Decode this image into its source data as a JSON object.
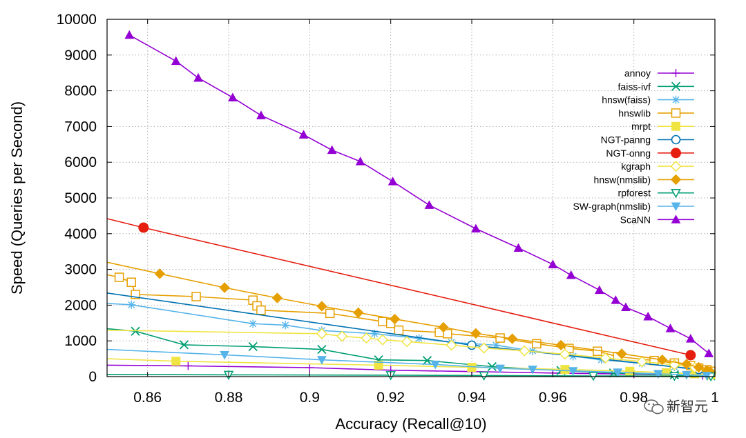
{
  "chart_data": {
    "type": "line",
    "xlabel": "Accuracy (Recall@10)",
    "ylabel": "Speed (Queries per Second)",
    "xlim": [
      0.85,
      1.0
    ],
    "ylim": [
      0,
      10000
    ],
    "xticks": [
      "0.86",
      "0.88",
      "0.9",
      "0.92",
      "0.94",
      "0.96",
      "0.98",
      "1"
    ],
    "yticks": [
      "0",
      "1000",
      "2000",
      "3000",
      "4000",
      "5000",
      "6000",
      "7000",
      "8000",
      "9000",
      "10000"
    ],
    "grid": true,
    "legend_position": "top-right",
    "series": [
      {
        "name": "annoy",
        "color": "#9400d3",
        "marker": "plus",
        "points": [
          [
            0.85,
            320
          ],
          [
            0.87,
            300
          ],
          [
            0.9,
            250
          ],
          [
            0.92,
            180
          ],
          [
            0.94,
            140
          ],
          [
            0.96,
            100
          ],
          [
            0.98,
            70
          ],
          [
            0.997,
            30
          ],
          [
            0.999,
            10
          ]
        ]
      },
      {
        "name": "faiss-ivf",
        "color": "#009e73",
        "marker": "x",
        "points": [
          [
            0.85,
            1340
          ],
          [
            0.857,
            1270
          ],
          [
            0.869,
            890
          ],
          [
            0.886,
            840
          ],
          [
            0.903,
            760
          ],
          [
            0.917,
            470
          ],
          [
            0.929,
            450
          ],
          [
            0.945,
            280
          ],
          [
            0.962,
            170
          ],
          [
            0.975,
            100
          ],
          [
            0.99,
            50
          ],
          [
            0.999,
            20
          ]
        ]
      },
      {
        "name": "hnsw(faiss)",
        "color": "#56b4e9",
        "marker": "star",
        "points": [
          [
            0.85,
            2050
          ],
          [
            0.856,
            2010
          ],
          [
            0.886,
            1480
          ],
          [
            0.894,
            1440
          ],
          [
            0.903,
            1290
          ],
          [
            0.916,
            1200
          ],
          [
            0.927,
            1070
          ],
          [
            0.935,
            960
          ],
          [
            0.946,
            880
          ],
          [
            0.955,
            720
          ],
          [
            0.965,
            570
          ],
          [
            0.972,
            470
          ],
          [
            0.982,
            370
          ],
          [
            0.99,
            270
          ],
          [
            0.996,
            180
          ],
          [
            0.999,
            60
          ]
        ]
      },
      {
        "name": "hnswlib",
        "color": "#e69f00",
        "marker": "square-open",
        "points": [
          [
            0.85,
            2850
          ],
          [
            0.853,
            2780
          ],
          [
            0.856,
            2640
          ],
          [
            0.857,
            2300
          ],
          [
            0.872,
            2240
          ],
          [
            0.886,
            2140
          ],
          [
            0.887,
            1980
          ],
          [
            0.888,
            1860
          ],
          [
            0.905,
            1770
          ],
          [
            0.918,
            1540
          ],
          [
            0.92,
            1490
          ],
          [
            0.922,
            1300
          ],
          [
            0.932,
            1240
          ],
          [
            0.934,
            1200
          ],
          [
            0.947,
            1080
          ],
          [
            0.956,
            920
          ],
          [
            0.964,
            790
          ],
          [
            0.971,
            710
          ],
          [
            0.976,
            560
          ],
          [
            0.985,
            450
          ],
          [
            0.99,
            380
          ],
          [
            0.994,
            310
          ],
          [
            0.996,
            240
          ],
          [
            0.998,
            190
          ],
          [
            0.999,
            150
          ]
        ]
      },
      {
        "name": "mrpt",
        "color": "#f0e442",
        "marker": "square-filled",
        "points": [
          [
            0.85,
            500
          ],
          [
            0.867,
            430
          ],
          [
            0.917,
            320
          ],
          [
            0.94,
            260
          ],
          [
            0.963,
            200
          ],
          [
            0.979,
            150
          ],
          [
            0.988,
            110
          ],
          [
            0.995,
            80
          ],
          [
            0.999,
            50
          ]
        ]
      },
      {
        "name": "NGT-panng",
        "color": "#0072b2",
        "marker": "circle-open",
        "points": [
          [
            0.85,
            2340
          ],
          [
            0.94,
            880
          ],
          [
            0.996,
            200
          ]
        ]
      },
      {
        "name": "NGT-onng",
        "color": "#e51e10",
        "marker": "circle-filled",
        "points": [
          [
            0.85,
            4420
          ],
          [
            0.859,
            4170
          ],
          [
            0.994,
            600
          ]
        ]
      },
      {
        "name": "kgraph",
        "color": "#f0e442",
        "marker": "diamond-open",
        "points": [
          [
            0.85,
            1300
          ],
          [
            0.903,
            1200
          ],
          [
            0.908,
            1130
          ],
          [
            0.914,
            1080
          ],
          [
            0.918,
            1030
          ],
          [
            0.924,
            980
          ],
          [
            0.935,
            880
          ],
          [
            0.943,
            800
          ],
          [
            0.953,
            720
          ],
          [
            0.963,
            630
          ],
          [
            0.973,
            520
          ],
          [
            0.982,
            420
          ],
          [
            0.99,
            330
          ],
          [
            0.995,
            250
          ],
          [
            0.998,
            170
          ],
          [
            0.999,
            100
          ]
        ]
      },
      {
        "name": "hnsw(nmslib)",
        "color": "#e69f00",
        "marker": "diamond-filled",
        "points": [
          [
            0.85,
            3200
          ],
          [
            0.863,
            2880
          ],
          [
            0.879,
            2490
          ],
          [
            0.892,
            2200
          ],
          [
            0.903,
            1970
          ],
          [
            0.912,
            1790
          ],
          [
            0.921,
            1610
          ],
          [
            0.933,
            1380
          ],
          [
            0.941,
            1210
          ],
          [
            0.95,
            1060
          ],
          [
            0.962,
            880
          ],
          [
            0.977,
            640
          ],
          [
            0.987,
            470
          ],
          [
            0.993,
            350
          ],
          [
            0.996,
            260
          ],
          [
            0.998,
            180
          ],
          [
            0.999,
            120
          ]
        ]
      },
      {
        "name": "rpforest",
        "color": "#009e73",
        "marker": "triangle-down-open",
        "points": [
          [
            0.85,
            60
          ],
          [
            0.88,
            50
          ],
          [
            0.92,
            40
          ],
          [
            0.943,
            30
          ],
          [
            0.97,
            20
          ],
          [
            0.99,
            15
          ],
          [
            0.999,
            5
          ]
        ]
      },
      {
        "name": "SW-graph(nmslib)",
        "color": "#56b4e9",
        "marker": "triangle-down-filled",
        "points": [
          [
            0.85,
            760
          ],
          [
            0.879,
            610
          ],
          [
            0.903,
            470
          ],
          [
            0.931,
            340
          ],
          [
            0.947,
            230
          ],
          [
            0.955,
            200
          ],
          [
            0.965,
            160
          ],
          [
            0.976,
            120
          ],
          [
            0.986,
            80
          ],
          [
            0.993,
            50
          ],
          [
            0.998,
            30
          ]
        ]
      },
      {
        "name": "ScaNN",
        "color": "#9400d3",
        "marker": "triangle-up-filled",
        "points": [
          [
            0.8555,
            9560
          ],
          [
            0.867,
            8830
          ],
          [
            0.8725,
            8360
          ],
          [
            0.881,
            7810
          ],
          [
            0.888,
            7310
          ],
          [
            0.8985,
            6770
          ],
          [
            0.9055,
            6340
          ],
          [
            0.9125,
            6020
          ],
          [
            0.9205,
            5460
          ],
          [
            0.9295,
            4800
          ],
          [
            0.941,
            4140
          ],
          [
            0.9515,
            3600
          ],
          [
            0.96,
            3140
          ],
          [
            0.9645,
            2840
          ],
          [
            0.9715,
            2420
          ],
          [
            0.9755,
            2140
          ],
          [
            0.978,
            1940
          ],
          [
            0.9835,
            1680
          ],
          [
            0.989,
            1350
          ],
          [
            0.994,
            1060
          ],
          [
            0.9985,
            650
          ]
        ]
      }
    ]
  },
  "watermark": {
    "text": "新智元",
    "icon": "wechat-icon"
  }
}
